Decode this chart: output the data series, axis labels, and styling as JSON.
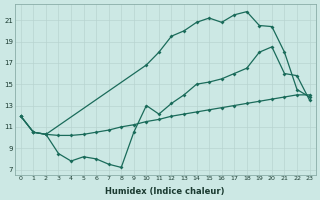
{
  "xlabel": "Humidex (Indice chaleur)",
  "background_color": "#cce8e4",
  "grid_color": "#b8d4d0",
  "line_color": "#1a6b5a",
  "line1_x": [
    0,
    1,
    2,
    3,
    4,
    5,
    6,
    7,
    8,
    9,
    10,
    11,
    12,
    13,
    14,
    15,
    16,
    17,
    18,
    19,
    20,
    21,
    22,
    23
  ],
  "line1_y": [
    12.0,
    10.5,
    10.3,
    10.2,
    10.2,
    10.3,
    10.5,
    10.7,
    11.0,
    11.2,
    11.5,
    11.7,
    12.0,
    12.2,
    12.4,
    12.6,
    12.8,
    13.0,
    13.2,
    13.4,
    13.6,
    13.8,
    14.0,
    14.0
  ],
  "line2_x": [
    0,
    1,
    2,
    3,
    4,
    5,
    6,
    7,
    8,
    9,
    10,
    11,
    12,
    13,
    14,
    15,
    16,
    17,
    18,
    19,
    20,
    21,
    22,
    23
  ],
  "line2_y": [
    12.0,
    10.5,
    10.3,
    8.5,
    7.8,
    8.2,
    8.0,
    7.5,
    7.2,
    10.5,
    13.0,
    12.2,
    13.2,
    14.0,
    15.0,
    15.2,
    15.5,
    16.0,
    16.5,
    18.0,
    18.5,
    16.0,
    15.8,
    13.5
  ],
  "line3_x": [
    0,
    1,
    2,
    10,
    11,
    12,
    13,
    14,
    15,
    16,
    17,
    18,
    19,
    20,
    21,
    22,
    23
  ],
  "line3_y": [
    12.0,
    10.5,
    10.3,
    16.8,
    18.0,
    19.5,
    20.0,
    20.8,
    21.2,
    20.8,
    21.5,
    21.8,
    20.5,
    20.4,
    18.0,
    14.5,
    13.8
  ],
  "xlim": [
    -0.5,
    23.5
  ],
  "ylim": [
    6.5,
    22.5
  ],
  "yticks": [
    7,
    9,
    11,
    13,
    15,
    17,
    19,
    21
  ],
  "xticks": [
    0,
    1,
    2,
    3,
    4,
    5,
    6,
    7,
    8,
    9,
    10,
    11,
    12,
    13,
    14,
    15,
    16,
    17,
    18,
    19,
    20,
    21,
    22,
    23
  ]
}
